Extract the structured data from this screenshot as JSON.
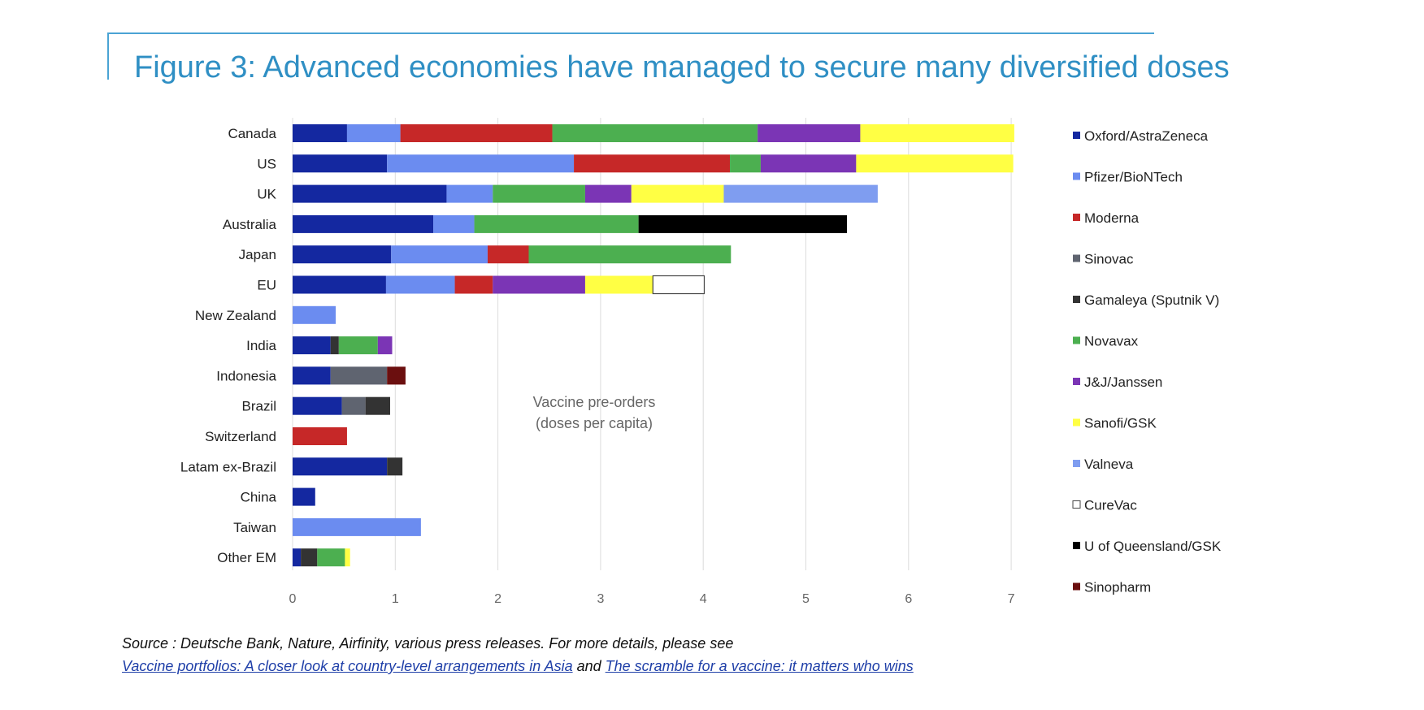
{
  "title": "Figure 3: Advanced economies have managed to secure many diversified doses",
  "chart_data": {
    "type": "bar",
    "orientation": "horizontal",
    "stacked": true,
    "xlim": [
      0,
      7
    ],
    "xticks": [
      "0",
      "1",
      "2",
      "3",
      "4",
      "5",
      "6",
      "7"
    ],
    "grid": true,
    "legend_position": "right",
    "annotation": [
      "Vaccine pre-orders",
      "(doses per capita)"
    ],
    "categories": [
      "Canada",
      "US",
      "UK",
      "Australia",
      "Japan",
      "EU",
      "New Zealand",
      "India",
      "Indonesia",
      "Brazil",
      "Switzerland",
      "Latam ex-Brazil",
      "China",
      "Taiwan",
      "Other EM"
    ],
    "series": [
      {
        "name": "Oxford/AstraZeneca",
        "color": "#1428a0",
        "values": [
          0.53,
          0.92,
          1.5,
          1.37,
          0.96,
          0.91,
          0,
          0.37,
          0.37,
          0.48,
          0,
          0.92,
          0.22,
          0,
          0.08
        ]
      },
      {
        "name": "Pfizer/BioNTech",
        "color": "#6b8cf0",
        "values": [
          0.52,
          1.82,
          0.45,
          0.4,
          0.94,
          0.67,
          0.42,
          0,
          0,
          0,
          0,
          0,
          0,
          1.25,
          0
        ]
      },
      {
        "name": "Moderna",
        "color": "#c62828",
        "values": [
          1.48,
          1.52,
          0,
          0,
          0.4,
          0.37,
          0,
          0,
          0,
          0,
          0.53,
          0,
          0,
          0,
          0
        ]
      },
      {
        "name": "Sinovac",
        "color": "#5f6470",
        "values": [
          0,
          0,
          0,
          0,
          0,
          0,
          0,
          0,
          0.55,
          0.23,
          0,
          0,
          0,
          0,
          0
        ]
      },
      {
        "name": "Gamaleya (Sputnik V)",
        "color": "#333333",
        "values": [
          0,
          0,
          0,
          0,
          0,
          0,
          0,
          0.08,
          0,
          0.24,
          0,
          0.15,
          0,
          0,
          0.16
        ]
      },
      {
        "name": "Novavax",
        "color": "#4caf50",
        "values": [
          2.0,
          0.3,
          0.9,
          1.6,
          1.97,
          0,
          0,
          0.38,
          0,
          0,
          0,
          0,
          0,
          0,
          0.27
        ]
      },
      {
        "name": "J&J/Janssen",
        "color": "#7b35b5",
        "values": [
          1.0,
          0.93,
          0.45,
          0,
          0,
          0.9,
          0,
          0.14,
          0,
          0,
          0,
          0,
          0,
          0,
          0
        ]
      },
      {
        "name": "Sanofi/GSK",
        "color": "#ffff44",
        "values": [
          1.5,
          1.53,
          0.9,
          0,
          0,
          0.66,
          0,
          0,
          0,
          0,
          0,
          0,
          0,
          0,
          0.05
        ]
      },
      {
        "name": "Valneva",
        "color": "#7f9df0",
        "values": [
          0,
          0,
          1.5,
          0,
          0,
          0,
          0,
          0,
          0,
          0,
          0,
          0,
          0,
          0,
          0
        ]
      },
      {
        "name": "CureVac",
        "color": "#ffffff",
        "values": [
          0,
          0,
          0,
          0,
          0,
          0.5,
          0,
          0,
          0,
          0,
          0,
          0,
          0,
          0,
          0
        ]
      },
      {
        "name": "U of Queensland/GSK",
        "color": "#000000",
        "values": [
          0,
          0,
          0,
          2.03,
          0,
          0,
          0,
          0,
          0,
          0,
          0,
          0,
          0,
          0,
          0
        ]
      },
      {
        "name": "Sinopharm",
        "color": "#6b0f0f",
        "values": [
          0,
          0,
          0,
          0,
          0,
          0,
          0,
          0,
          0.18,
          0,
          0,
          0,
          0,
          0,
          0
        ]
      }
    ]
  },
  "source": {
    "text": "Source : Deutsche Bank, Nature, Airfinity, various press releases. For more details, please see",
    "link1": "Vaccine portfolios: A closer look at country-level arrangements in Asia",
    "joiner": " and ",
    "link2": "The scramble for a vaccine: it matters who wins"
  }
}
